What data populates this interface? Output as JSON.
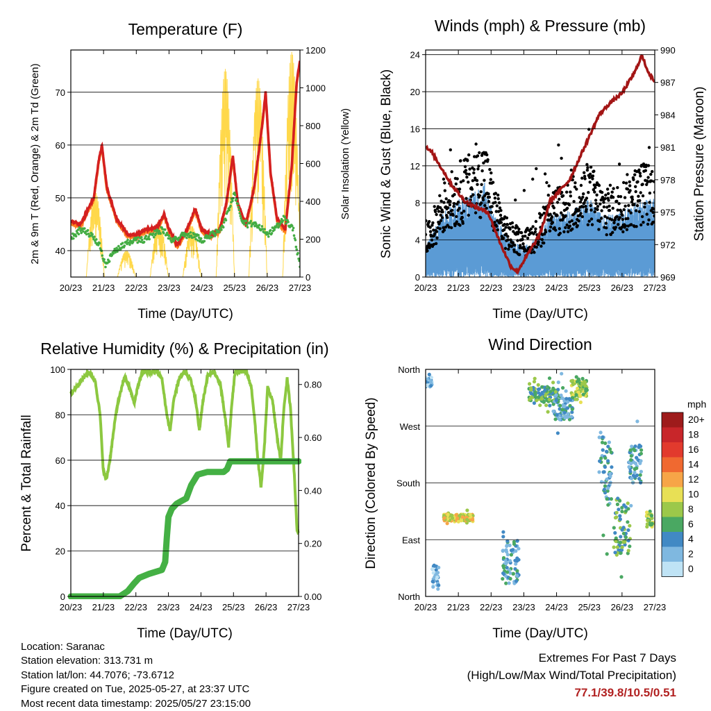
{
  "time_ticks": [
    "20/23",
    "21/23",
    "22/23",
    "23/23",
    "24/23",
    "25/23",
    "26/23",
    "27/23"
  ],
  "colors": {
    "temp2m": "#d42020",
    "temp9m": "#ff7f1e",
    "dewpoint": "#44ad44",
    "solar": "#ffd84a",
    "gust": "#000000",
    "wind": "#5b9bd5",
    "pressure": "#a31515",
    "rh": "#8cc840",
    "precip": "#44b044",
    "extremes": "#b22222"
  },
  "temperature": {
    "title": "Temperature (F)",
    "ylabel_left": "2m & 9m T (Red, Orange) & 2m Td (Green)",
    "ylabel_right": "Solar Insolation (Yellow)",
    "xlabel": "Time (Day/UTC)",
    "yticks_left": [
      "40",
      "50",
      "60",
      "70"
    ],
    "yticks_right": [
      "0",
      "200",
      "400",
      "600",
      "800",
      "1000",
      "1200"
    ],
    "ylim_left": [
      35,
      78
    ],
    "ylim_right": [
      0,
      1200
    ],
    "grid": true,
    "temp_2m_daily": [
      [
        0,
        45.5
      ],
      [
        0.3,
        45
      ],
      [
        0.7,
        50
      ],
      [
        0.85,
        57
      ],
      [
        0.95,
        60
      ],
      [
        1.1,
        52
      ],
      [
        1.4,
        46
      ],
      [
        1.75,
        43
      ],
      [
        2.0,
        43
      ],
      [
        2.3,
        44
      ],
      [
        2.65,
        44.5
      ],
      [
        2.85,
        47
      ],
      [
        3.0,
        44
      ],
      [
        3.25,
        41
      ],
      [
        3.55,
        44
      ],
      [
        3.8,
        48
      ],
      [
        4.0,
        44
      ],
      [
        4.3,
        43
      ],
      [
        4.55,
        44
      ],
      [
        4.75,
        49
      ],
      [
        4.95,
        58
      ],
      [
        5.1,
        49
      ],
      [
        5.35,
        45
      ],
      [
        5.6,
        52
      ],
      [
        5.85,
        64
      ],
      [
        5.95,
        70
      ],
      [
        6.1,
        55
      ],
      [
        6.3,
        46
      ],
      [
        6.55,
        44
      ],
      [
        6.75,
        56
      ],
      [
        6.9,
        72
      ],
      [
        7.0,
        76
      ]
    ],
    "dew_2m_daily": [
      [
        0,
        42.5
      ],
      [
        0.3,
        44
      ],
      [
        0.6,
        43
      ],
      [
        0.9,
        41
      ],
      [
        1.05,
        37
      ],
      [
        1.3,
        40
      ],
      [
        1.6,
        41
      ],
      [
        1.9,
        42
      ],
      [
        2.2,
        42
      ],
      [
        2.5,
        43
      ],
      [
        2.8,
        44
      ],
      [
        3.1,
        42
      ],
      [
        3.4,
        43
      ],
      [
        3.7,
        43
      ],
      [
        4.0,
        42
      ],
      [
        4.3,
        43
      ],
      [
        4.6,
        44
      ],
      [
        4.85,
        48
      ],
      [
        5.0,
        51
      ],
      [
        5.2,
        46
      ],
      [
        5.4,
        45
      ],
      [
        5.7,
        45
      ],
      [
        6.0,
        43
      ],
      [
        6.2,
        44
      ],
      [
        6.5,
        46
      ],
      [
        6.8,
        44
      ],
      [
        7.0,
        37
      ]
    ],
    "solar_peaks": [
      [
        0.75,
        450
      ],
      [
        1.7,
        140
      ],
      [
        2.7,
        300
      ],
      [
        3.7,
        270
      ],
      [
        4.72,
        1100
      ],
      [
        5.72,
        1050
      ],
      [
        6.75,
        1190
      ]
    ]
  },
  "winds": {
    "title": "Winds (mph) & Pressure (mb)",
    "ylabel_left": "Sonic Wind & Gust (Blue, Black)",
    "ylabel_right": "Station Pressure (Maroon)",
    "xlabel": "Time (Day/UTC)",
    "yticks_left": [
      "0",
      "4",
      "8",
      "12",
      "16",
      "20",
      "24"
    ],
    "yticks_right": [
      "969",
      "972",
      "975",
      "978",
      "981",
      "984",
      "987",
      "990"
    ],
    "ylim_left": [
      0,
      24.5
    ],
    "ylim_right": [
      969,
      990
    ],
    "grid": true,
    "pressure": [
      [
        0,
        981
      ],
      [
        0.2,
        980.5
      ],
      [
        0.5,
        979
      ],
      [
        0.8,
        977.5
      ],
      [
        1.2,
        976
      ],
      [
        1.5,
        975.5
      ],
      [
        1.9,
        975
      ],
      [
        2.3,
        972
      ],
      [
        2.6,
        970
      ],
      [
        2.8,
        969.5
      ],
      [
        3.1,
        971
      ],
      [
        3.5,
        973
      ],
      [
        3.8,
        976
      ],
      [
        4.1,
        977
      ],
      [
        4.4,
        978
      ],
      [
        4.7,
        980
      ],
      [
        5.0,
        982
      ],
      [
        5.3,
        984
      ],
      [
        5.6,
        985
      ],
      [
        5.8,
        985.5
      ],
      [
        6.0,
        986
      ],
      [
        6.2,
        987
      ],
      [
        6.4,
        988
      ],
      [
        6.6,
        989.5
      ],
      [
        6.8,
        988
      ],
      [
        7.0,
        987
      ]
    ],
    "wind_envelope": [
      [
        0,
        2
      ],
      [
        0.5,
        4
      ],
      [
        1.0,
        5
      ],
      [
        1.5,
        5.5
      ],
      [
        1.8,
        6
      ],
      [
        2.1,
        4
      ],
      [
        2.5,
        2.5
      ],
      [
        3.0,
        2
      ],
      [
        3.4,
        2.5
      ],
      [
        3.8,
        4
      ],
      [
        4.2,
        4
      ],
      [
        4.6,
        4.5
      ],
      [
        5.0,
        5
      ],
      [
        5.4,
        4
      ],
      [
        5.8,
        4
      ],
      [
        6.2,
        4.5
      ],
      [
        6.6,
        5
      ],
      [
        7.0,
        5
      ]
    ]
  },
  "humidity": {
    "title": "Relative Humidity (%) & Precipitation (in)",
    "ylabel_left": "Percent & Total Rainfall",
    "xlabel": "Time (Day/UTC)",
    "yticks_left": [
      "0",
      "20",
      "40",
      "60",
      "80",
      "100"
    ],
    "yticks_right": [
      "0.00",
      "0.20",
      "0.40",
      "0.60",
      "0.80"
    ],
    "ylim_left": [
      0,
      100
    ],
    "ylim_right": [
      0,
      0.857
    ],
    "grid": true,
    "rh": [
      [
        0,
        89
      ],
      [
        0.3,
        95
      ],
      [
        0.55,
        99
      ],
      [
        0.75,
        95
      ],
      [
        0.9,
        80
      ],
      [
        1.0,
        55
      ],
      [
        1.1,
        52
      ],
      [
        1.2,
        60
      ],
      [
        1.4,
        82
      ],
      [
        1.65,
        97
      ],
      [
        1.8,
        92
      ],
      [
        1.95,
        85
      ],
      [
        2.05,
        92
      ],
      [
        2.2,
        99
      ],
      [
        2.5,
        99
      ],
      [
        2.65,
        99
      ],
      [
        2.8,
        96
      ],
      [
        2.95,
        80
      ],
      [
        3.05,
        73
      ],
      [
        3.15,
        85
      ],
      [
        3.3,
        95
      ],
      [
        3.5,
        99
      ],
      [
        3.7,
        95
      ],
      [
        3.85,
        85
      ],
      [
        3.95,
        73
      ],
      [
        4.05,
        85
      ],
      [
        4.2,
        97
      ],
      [
        4.4,
        99
      ],
      [
        4.6,
        93
      ],
      [
        4.75,
        78
      ],
      [
        4.85,
        66
      ],
      [
        4.95,
        85
      ],
      [
        5.05,
        99
      ],
      [
        5.4,
        99
      ],
      [
        5.55,
        92
      ],
      [
        5.65,
        78
      ],
      [
        5.75,
        60
      ],
      [
        5.85,
        48
      ],
      [
        5.95,
        66
      ],
      [
        6.05,
        92
      ],
      [
        6.2,
        86
      ],
      [
        6.35,
        69
      ],
      [
        6.45,
        60
      ],
      [
        6.55,
        83
      ],
      [
        6.65,
        96
      ],
      [
        6.75,
        83
      ],
      [
        6.85,
        59
      ],
      [
        6.95,
        30
      ],
      [
        7.0,
        28
      ]
    ],
    "precip": [
      [
        0,
        0
      ],
      [
        1.5,
        0
      ],
      [
        1.75,
        0.02
      ],
      [
        1.95,
        0.05
      ],
      [
        2.1,
        0.07
      ],
      [
        2.4,
        0.085
      ],
      [
        2.8,
        0.1
      ],
      [
        2.9,
        0.13
      ],
      [
        2.95,
        0.22
      ],
      [
        3.0,
        0.3
      ],
      [
        3.1,
        0.33
      ],
      [
        3.25,
        0.35
      ],
      [
        3.4,
        0.36
      ],
      [
        3.55,
        0.37
      ],
      [
        3.7,
        0.42
      ],
      [
        3.9,
        0.46
      ],
      [
        4.2,
        0.47
      ],
      [
        4.7,
        0.47
      ],
      [
        4.8,
        0.48
      ],
      [
        4.9,
        0.51
      ],
      [
        5.2,
        0.51
      ],
      [
        7.0,
        0.51
      ]
    ]
  },
  "direction": {
    "title": "Wind Direction",
    "ylabel_left": "Direction (Colored By Speed)",
    "xlabel": "Time (Day/UTC)",
    "yticks_left": [
      "North",
      "East",
      "South",
      "West",
      "North"
    ],
    "ylim_left": [
      0,
      360
    ],
    "grid": true,
    "legend_title": "mph",
    "legend_labels": [
      "20+",
      "18",
      "16",
      "14",
      "12",
      "10",
      "8",
      "6",
      "4",
      "2",
      "0"
    ],
    "legend_colors": [
      "#9e1b1b",
      "#c8262a",
      "#e23a2d",
      "#f06930",
      "#f7a547",
      "#e8e055",
      "#9cc84a",
      "#4aa862",
      "#4189c4",
      "#7fb8e0",
      "#bfe3f5"
    ],
    "clusters": [
      [
        0.1,
        340,
        0.2,
        15,
        1
      ],
      [
        0.3,
        30,
        0.2,
        40,
        1
      ],
      [
        1.0,
        125,
        0.9,
        10,
        5
      ],
      [
        2.6,
        55,
        0.5,
        70,
        2
      ],
      [
        3.6,
        320,
        0.9,
        25,
        3
      ],
      [
        4.7,
        330,
        0.5,
        25,
        4
      ],
      [
        5.5,
        200,
        0.4,
        120,
        2
      ],
      [
        6.0,
        110,
        0.5,
        90,
        3
      ],
      [
        6.4,
        210,
        0.4,
        60,
        2
      ],
      [
        6.85,
        120,
        0.2,
        30,
        4
      ],
      [
        4.2,
        300,
        0.6,
        40,
        2
      ]
    ]
  },
  "info": {
    "location": "Location: Saranac",
    "elevation": "Station elevation: 313.731 m",
    "latlon": "Station lat/lon: 44.7076; -73.6712",
    "created": "Figure created on Tue, 2025-05-27, at 23:37 UTC",
    "recent": "Most recent data timestamp: 2025/05/27 23:15:00"
  },
  "extremes": {
    "title": "Extremes For Past 7 Days",
    "subtitle": "(High/Low/Max Wind/Total Precipitation)",
    "values": "77.1/39.8/10.5/0.51"
  }
}
